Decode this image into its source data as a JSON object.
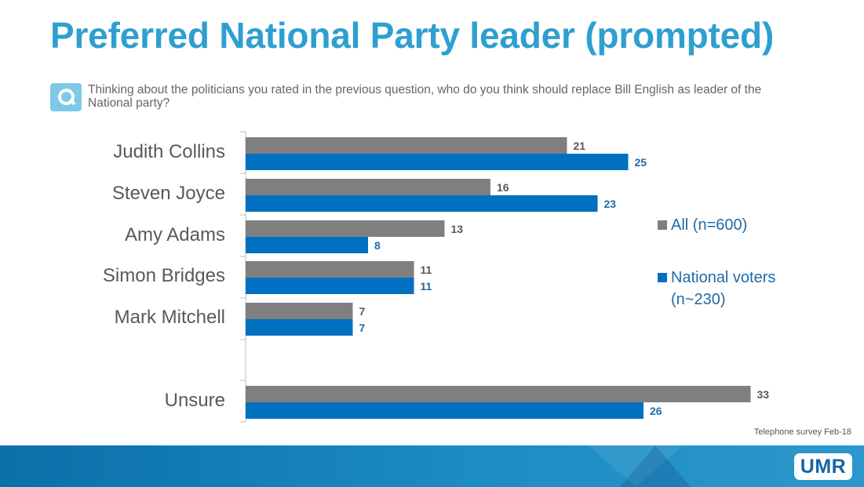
{
  "header": {
    "title": "Preferred National Party leader (prompted)",
    "question": "Thinking about the politicians you rated in the previous question, who do you think should replace Bill English as leader of the National party?"
  },
  "footnote": "Telephone survey Feb-18",
  "logo_text": "UMR",
  "colors": {
    "title": "#2E9FD0",
    "series_all": "#7F7F7F",
    "series_national": "#0070C0",
    "footer": "#1C8CC4"
  },
  "chart_data": {
    "type": "bar",
    "orientation": "horizontal",
    "title": "Preferred National Party leader (prompted)",
    "xlabel": "",
    "ylabel": "",
    "grid": false,
    "legend_position": "right",
    "categories": [
      "Judith Collins",
      "Steven Joyce",
      "Amy Adams",
      "Simon Bridges",
      "Mark Mitchell",
      "Unsure"
    ],
    "series": [
      {
        "name": "All (n=600)",
        "legend_lines": [
          "All (n=600)"
        ],
        "color": "#7F7F7F",
        "label_color": "#595959",
        "values": [
          21,
          16,
          13,
          11,
          7,
          33
        ]
      },
      {
        "name": "National voters (n~230)",
        "legend_lines": [
          "National voters",
          "(n~230)"
        ],
        "color": "#0070C0",
        "label_color": "#1F6AA8",
        "values": [
          25,
          23,
          8,
          11,
          7,
          26
        ]
      }
    ],
    "xlim": [
      0,
      35
    ]
  }
}
